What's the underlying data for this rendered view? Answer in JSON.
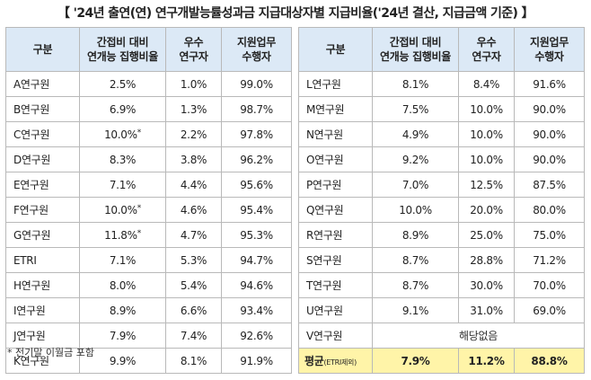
{
  "title": "【 '24년 출연(연) 연구개발능률성과금 지급대상자별 지급비율('24년 결산, 지급금액 기준) 】",
  "headers": {
    "col1": "구분",
    "col2_line1": "간접비 대비",
    "col2_line2": "연개능 집행비율",
    "col3_line1": "우수",
    "col3_line2": "연구자",
    "col4_line1": "지원업무",
    "col4_line2": "수행자"
  },
  "left_rows": [
    {
      "name": "A연구원",
      "ratio": "2.5%",
      "star": "",
      "excellent": "1.0%",
      "support": "99.0%"
    },
    {
      "name": "B연구원",
      "ratio": "6.9%",
      "star": "",
      "excellent": "1.3%",
      "support": "98.7%"
    },
    {
      "name": "C연구원",
      "ratio": "10.0%",
      "star": "*",
      "excellent": "2.2%",
      "support": "97.8%"
    },
    {
      "name": "D연구원",
      "ratio": "8.3%",
      "star": "",
      "excellent": "3.8%",
      "support": "96.2%"
    },
    {
      "name": "E연구원",
      "ratio": "7.1%",
      "star": "",
      "excellent": "4.4%",
      "support": "95.6%"
    },
    {
      "name": "F연구원",
      "ratio": "10.0%",
      "star": "*",
      "excellent": "4.6%",
      "support": "95.4%"
    },
    {
      "name": "G연구원",
      "ratio": "11.8%",
      "star": "*",
      "excellent": "4.7%",
      "support": "95.3%"
    },
    {
      "name": "ETRI",
      "ratio": "7.1%",
      "star": "",
      "excellent": "5.3%",
      "support": "94.7%"
    },
    {
      "name": "H연구원",
      "ratio": "8.0%",
      "star": "",
      "excellent": "5.4%",
      "support": "94.6%"
    },
    {
      "name": "I연구원",
      "ratio": "8.9%",
      "star": "",
      "excellent": "6.6%",
      "support": "93.4%"
    },
    {
      "name": "J연구원",
      "ratio": "7.9%",
      "star": "",
      "excellent": "7.4%",
      "support": "92.6%"
    },
    {
      "name": "K연구원",
      "ratio": "9.9%",
      "star": "",
      "excellent": "8.1%",
      "support": "91.9%"
    }
  ],
  "right_rows": [
    {
      "name": "L연구원",
      "ratio": "8.1%",
      "star": "",
      "excellent": "8.4%",
      "support": "91.6%"
    },
    {
      "name": "M연구원",
      "ratio": "7.5%",
      "star": "",
      "excellent": "10.0%",
      "support": "90.0%"
    },
    {
      "name": "N연구원",
      "ratio": "4.9%",
      "star": "",
      "excellent": "10.0%",
      "support": "90.0%"
    },
    {
      "name": "O연구원",
      "ratio": "9.2%",
      "star": "",
      "excellent": "10.0%",
      "support": "90.0%"
    },
    {
      "name": "P연구원",
      "ratio": "7.0%",
      "star": "",
      "excellent": "12.5%",
      "support": "87.5%"
    },
    {
      "name": "Q연구원",
      "ratio": "10.0%",
      "star": "",
      "excellent": "20.0%",
      "support": "80.0%"
    },
    {
      "name": "R연구원",
      "ratio": "8.9%",
      "star": "",
      "excellent": "25.0%",
      "support": "75.0%"
    },
    {
      "name": "S연구원",
      "ratio": "8.7%",
      "star": "",
      "excellent": "28.8%",
      "support": "71.2%"
    },
    {
      "name": "T연구원",
      "ratio": "8.7%",
      "star": "",
      "excellent": "30.0%",
      "support": "70.0%"
    },
    {
      "name": "U연구원",
      "ratio": "9.1%",
      "star": "",
      "excellent": "31.0%",
      "support": "69.0%"
    }
  ],
  "v_row": {
    "name": "V연구원",
    "merged": "해당없음"
  },
  "avg_row": {
    "name": "평균",
    "name_sub": "(ETRI제외)",
    "ratio": "7.9%",
    "excellent": "11.2%",
    "support": "88.8%"
  },
  "footnote": "* 전기말 이월금 포함",
  "colors": {
    "header_bg": "#dce9f6",
    "avg_bg": "#fff4a8",
    "border": "#b9b9b9"
  }
}
